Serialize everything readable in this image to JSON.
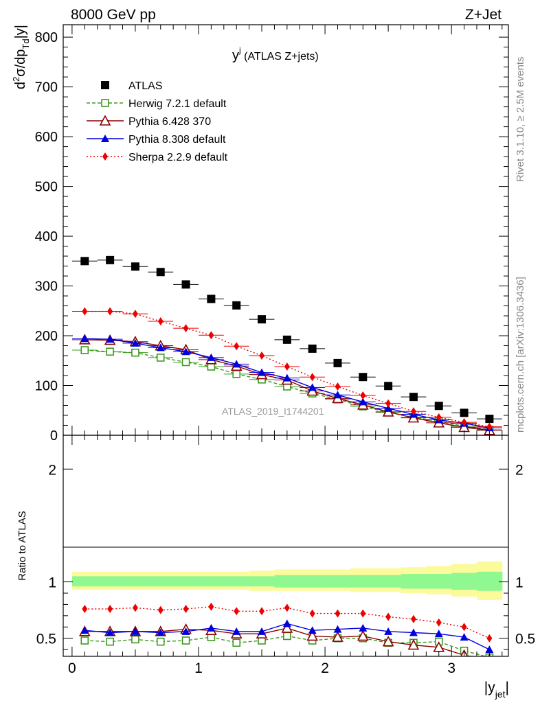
{
  "header": {
    "left": "8000 GeV pp",
    "right": "Z+Jet",
    "side_top": "Rivet 3.1.10, ≥ 2.5M events",
    "side_bottom": "mcplots.cern.ch [arXiv:1306.3436]"
  },
  "chart_data": {
    "type": "line",
    "title": "y",
    "title_sup": "j",
    "title_suffix": " (ATLAS Z+jets)",
    "ylabel": "d²σ/dp_Td|y|",
    "xlabel": "|y_jet|",
    "ratio_ylabel": "Ratio to ATLAS",
    "watermark": "ATLAS_2019_I1744201",
    "xlim": [
      -0.07,
      3.45
    ],
    "ylim": [
      0,
      825
    ],
    "ratio_ylim": [
      0.34,
      2.3
    ],
    "x_ticks": [
      "0",
      "1",
      "2",
      "3"
    ],
    "y_ticks": [
      "0",
      "100",
      "200",
      "300",
      "400",
      "500",
      "600",
      "700",
      "800"
    ],
    "ratio_ticks": [
      "0.5",
      "1",
      "2"
    ],
    "x": [
      0.1,
      0.3,
      0.5,
      0.7,
      0.9,
      1.1,
      1.3,
      1.5,
      1.7,
      1.9,
      2.1,
      2.3,
      2.5,
      2.7,
      2.9,
      3.1,
      3.3
    ],
    "series": [
      {
        "name": "ATLAS",
        "color": "#000000",
        "marker": "square",
        "style": "none",
        "values": [
          350,
          352,
          339,
          328,
          303,
          274,
          261,
          233,
          192,
          174,
          145,
          117,
          99,
          77,
          59,
          45,
          33
        ],
        "ratio": [
          1,
          1,
          1,
          1,
          1,
          1,
          1,
          1,
          1,
          1,
          1,
          1,
          1,
          1,
          1,
          1,
          1
        ]
      },
      {
        "name": "Herwig 7.2.1 default",
        "color": "#3a9a1c",
        "marker": "open-square",
        "style": "dashed",
        "values": [
          171,
          168,
          166,
          156,
          147,
          138,
          123,
          112,
          98,
          84,
          72,
          58,
          46,
          36,
          28,
          18,
          11
        ],
        "ratio": [
          0.48,
          0.47,
          0.49,
          0.47,
          0.48,
          0.51,
          0.46,
          0.48,
          0.52,
          0.48,
          0.5,
          0.5,
          0.46,
          0.46,
          0.47,
          0.39,
          0.33
        ]
      },
      {
        "name": "Pythia 6.428 370",
        "color": "#8b0000",
        "marker": "open-triangle",
        "style": "solid",
        "values": [
          192,
          191,
          188,
          180,
          172,
          152,
          139,
          122,
          111,
          89,
          74,
          61,
          47,
          35,
          25,
          16,
          10
        ],
        "ratio": [
          0.56,
          0.56,
          0.56,
          0.56,
          0.58,
          0.57,
          0.54,
          0.54,
          0.59,
          0.52,
          0.51,
          0.52,
          0.47,
          0.44,
          0.42,
          0.35,
          0.31
        ]
      },
      {
        "name": "Pythia 8.308 default",
        "color": "#0000dd",
        "marker": "triangle",
        "style": "solid",
        "values": [
          194,
          193,
          185,
          176,
          168,
          156,
          143,
          126,
          115,
          96,
          81,
          67,
          54,
          42,
          31,
          24,
          15
        ],
        "ratio": [
          0.57,
          0.55,
          0.56,
          0.55,
          0.56,
          0.59,
          0.56,
          0.56,
          0.63,
          0.57,
          0.58,
          0.59,
          0.56,
          0.55,
          0.54,
          0.51,
          0.4
        ]
      },
      {
        "name": "Sherpa 2.2.9 default",
        "color": "#ee0000",
        "marker": "diamond",
        "style": "dotted",
        "values": [
          249,
          249,
          244,
          229,
          215,
          201,
          179,
          160,
          138,
          117,
          98,
          80,
          64,
          48,
          36,
          26,
          17
        ],
        "ratio": [
          0.76,
          0.76,
          0.77,
          0.75,
          0.76,
          0.78,
          0.74,
          0.74,
          0.77,
          0.72,
          0.72,
          0.72,
          0.69,
          0.67,
          0.64,
          0.6,
          0.5
        ]
      }
    ],
    "bands": {
      "inner_color": "#90f890",
      "outer_color": "#fbfb9c",
      "inner": [
        [
          0.96,
          1.05
        ],
        [
          0.96,
          1.05
        ],
        [
          0.96,
          1.05
        ],
        [
          0.96,
          1.05
        ],
        [
          0.96,
          1.05
        ],
        [
          0.96,
          1.05
        ],
        [
          0.96,
          1.05
        ],
        [
          0.96,
          1.05
        ],
        [
          0.95,
          1.06
        ],
        [
          0.95,
          1.06
        ],
        [
          0.95,
          1.06
        ],
        [
          0.95,
          1.06
        ],
        [
          0.95,
          1.06
        ],
        [
          0.94,
          1.07
        ],
        [
          0.94,
          1.07
        ],
        [
          0.93,
          1.08
        ],
        [
          0.92,
          1.09
        ]
      ],
      "outer": [
        [
          0.93,
          1.09
        ],
        [
          0.93,
          1.09
        ],
        [
          0.93,
          1.09
        ],
        [
          0.93,
          1.09
        ],
        [
          0.93,
          1.09
        ],
        [
          0.93,
          1.09
        ],
        [
          0.93,
          1.09
        ],
        [
          0.92,
          1.1
        ],
        [
          0.92,
          1.11
        ],
        [
          0.92,
          1.11
        ],
        [
          0.92,
          1.11
        ],
        [
          0.91,
          1.12
        ],
        [
          0.91,
          1.12
        ],
        [
          0.9,
          1.13
        ],
        [
          0.89,
          1.14
        ],
        [
          0.87,
          1.16
        ],
        [
          0.84,
          1.18
        ]
      ]
    }
  }
}
